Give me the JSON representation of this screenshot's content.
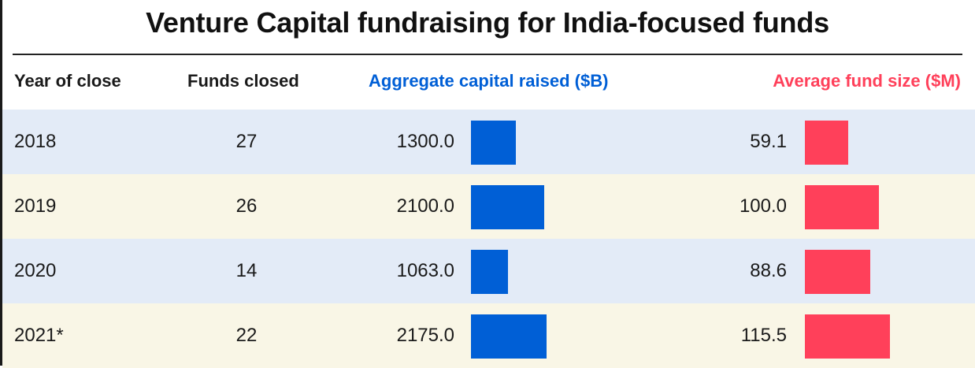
{
  "title": "Venture Capital fundraising for India-focused funds",
  "headers": {
    "year": "Year of close",
    "funds": "Funds closed",
    "aggregate": "Aggregate capital raised ($B)",
    "average": "Average fund size ($M)"
  },
  "colors": {
    "aggregate": "#005fd6",
    "average": "#ff405a",
    "row_blue": "#e3ebf7",
    "row_cream": "#f9f6e6"
  },
  "rows": [
    {
      "year": "2018",
      "funds": "27",
      "aggregate": "1300.0",
      "average": "59.1",
      "shade": "blue"
    },
    {
      "year": "2019",
      "funds": "26",
      "aggregate": "2100.0",
      "average": "100.0",
      "shade": "cream"
    },
    {
      "year": "2020",
      "funds": "14",
      "aggregate": "1063.0",
      "average": "88.6",
      "shade": "blue"
    },
    {
      "year": "2021*",
      "funds": "22",
      "aggregate": "2175.0",
      "average": "115.5",
      "shade": "cream"
    }
  ],
  "chart_data": {
    "type": "table",
    "title": "Venture Capital fundraising for India-focused funds",
    "columns": [
      "Year of close",
      "Funds closed",
      "Aggregate capital raised ($B)",
      "Average fund size ($M)"
    ],
    "categories": [
      "2018",
      "2019",
      "2020",
      "2021*"
    ],
    "series": [
      {
        "name": "Funds closed",
        "values": [
          27,
          26,
          14,
          22
        ]
      },
      {
        "name": "Aggregate capital raised ($B)",
        "values": [
          1300.0,
          2100.0,
          1063.0,
          2175.0
        ]
      },
      {
        "name": "Average fund size ($M)",
        "values": [
          59.1,
          100.0,
          88.6,
          115.5
        ]
      }
    ]
  }
}
